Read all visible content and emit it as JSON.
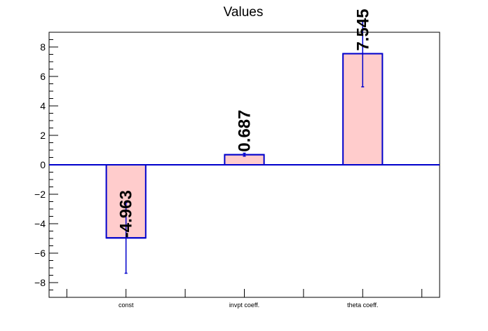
{
  "chart_data": {
    "type": "bar",
    "title": "Values",
    "categories": [
      "const",
      "invpt coeff.",
      "theta coeff."
    ],
    "values": [
      -4.963,
      0.687,
      7.545
    ],
    "value_labels": [
      "-4.963",
      "0.687",
      "7.545"
    ],
    "errors": [
      2.4,
      0.1,
      2.25
    ],
    "ylim": [
      -9.0,
      9.0
    ],
    "yticks": [
      -8,
      -6,
      -4,
      -2,
      0,
      2,
      4,
      6,
      8
    ],
    "ytick_labels": [
      "−8",
      "−6",
      "−4",
      "−2",
      "0",
      "2",
      "4",
      "6",
      "8"
    ],
    "xlabel": "",
    "ylabel": "",
    "grid": false,
    "colors": {
      "bar_fill": "#ffcccc",
      "bar_edge": "#0000cc",
      "axis": "#000000"
    }
  }
}
